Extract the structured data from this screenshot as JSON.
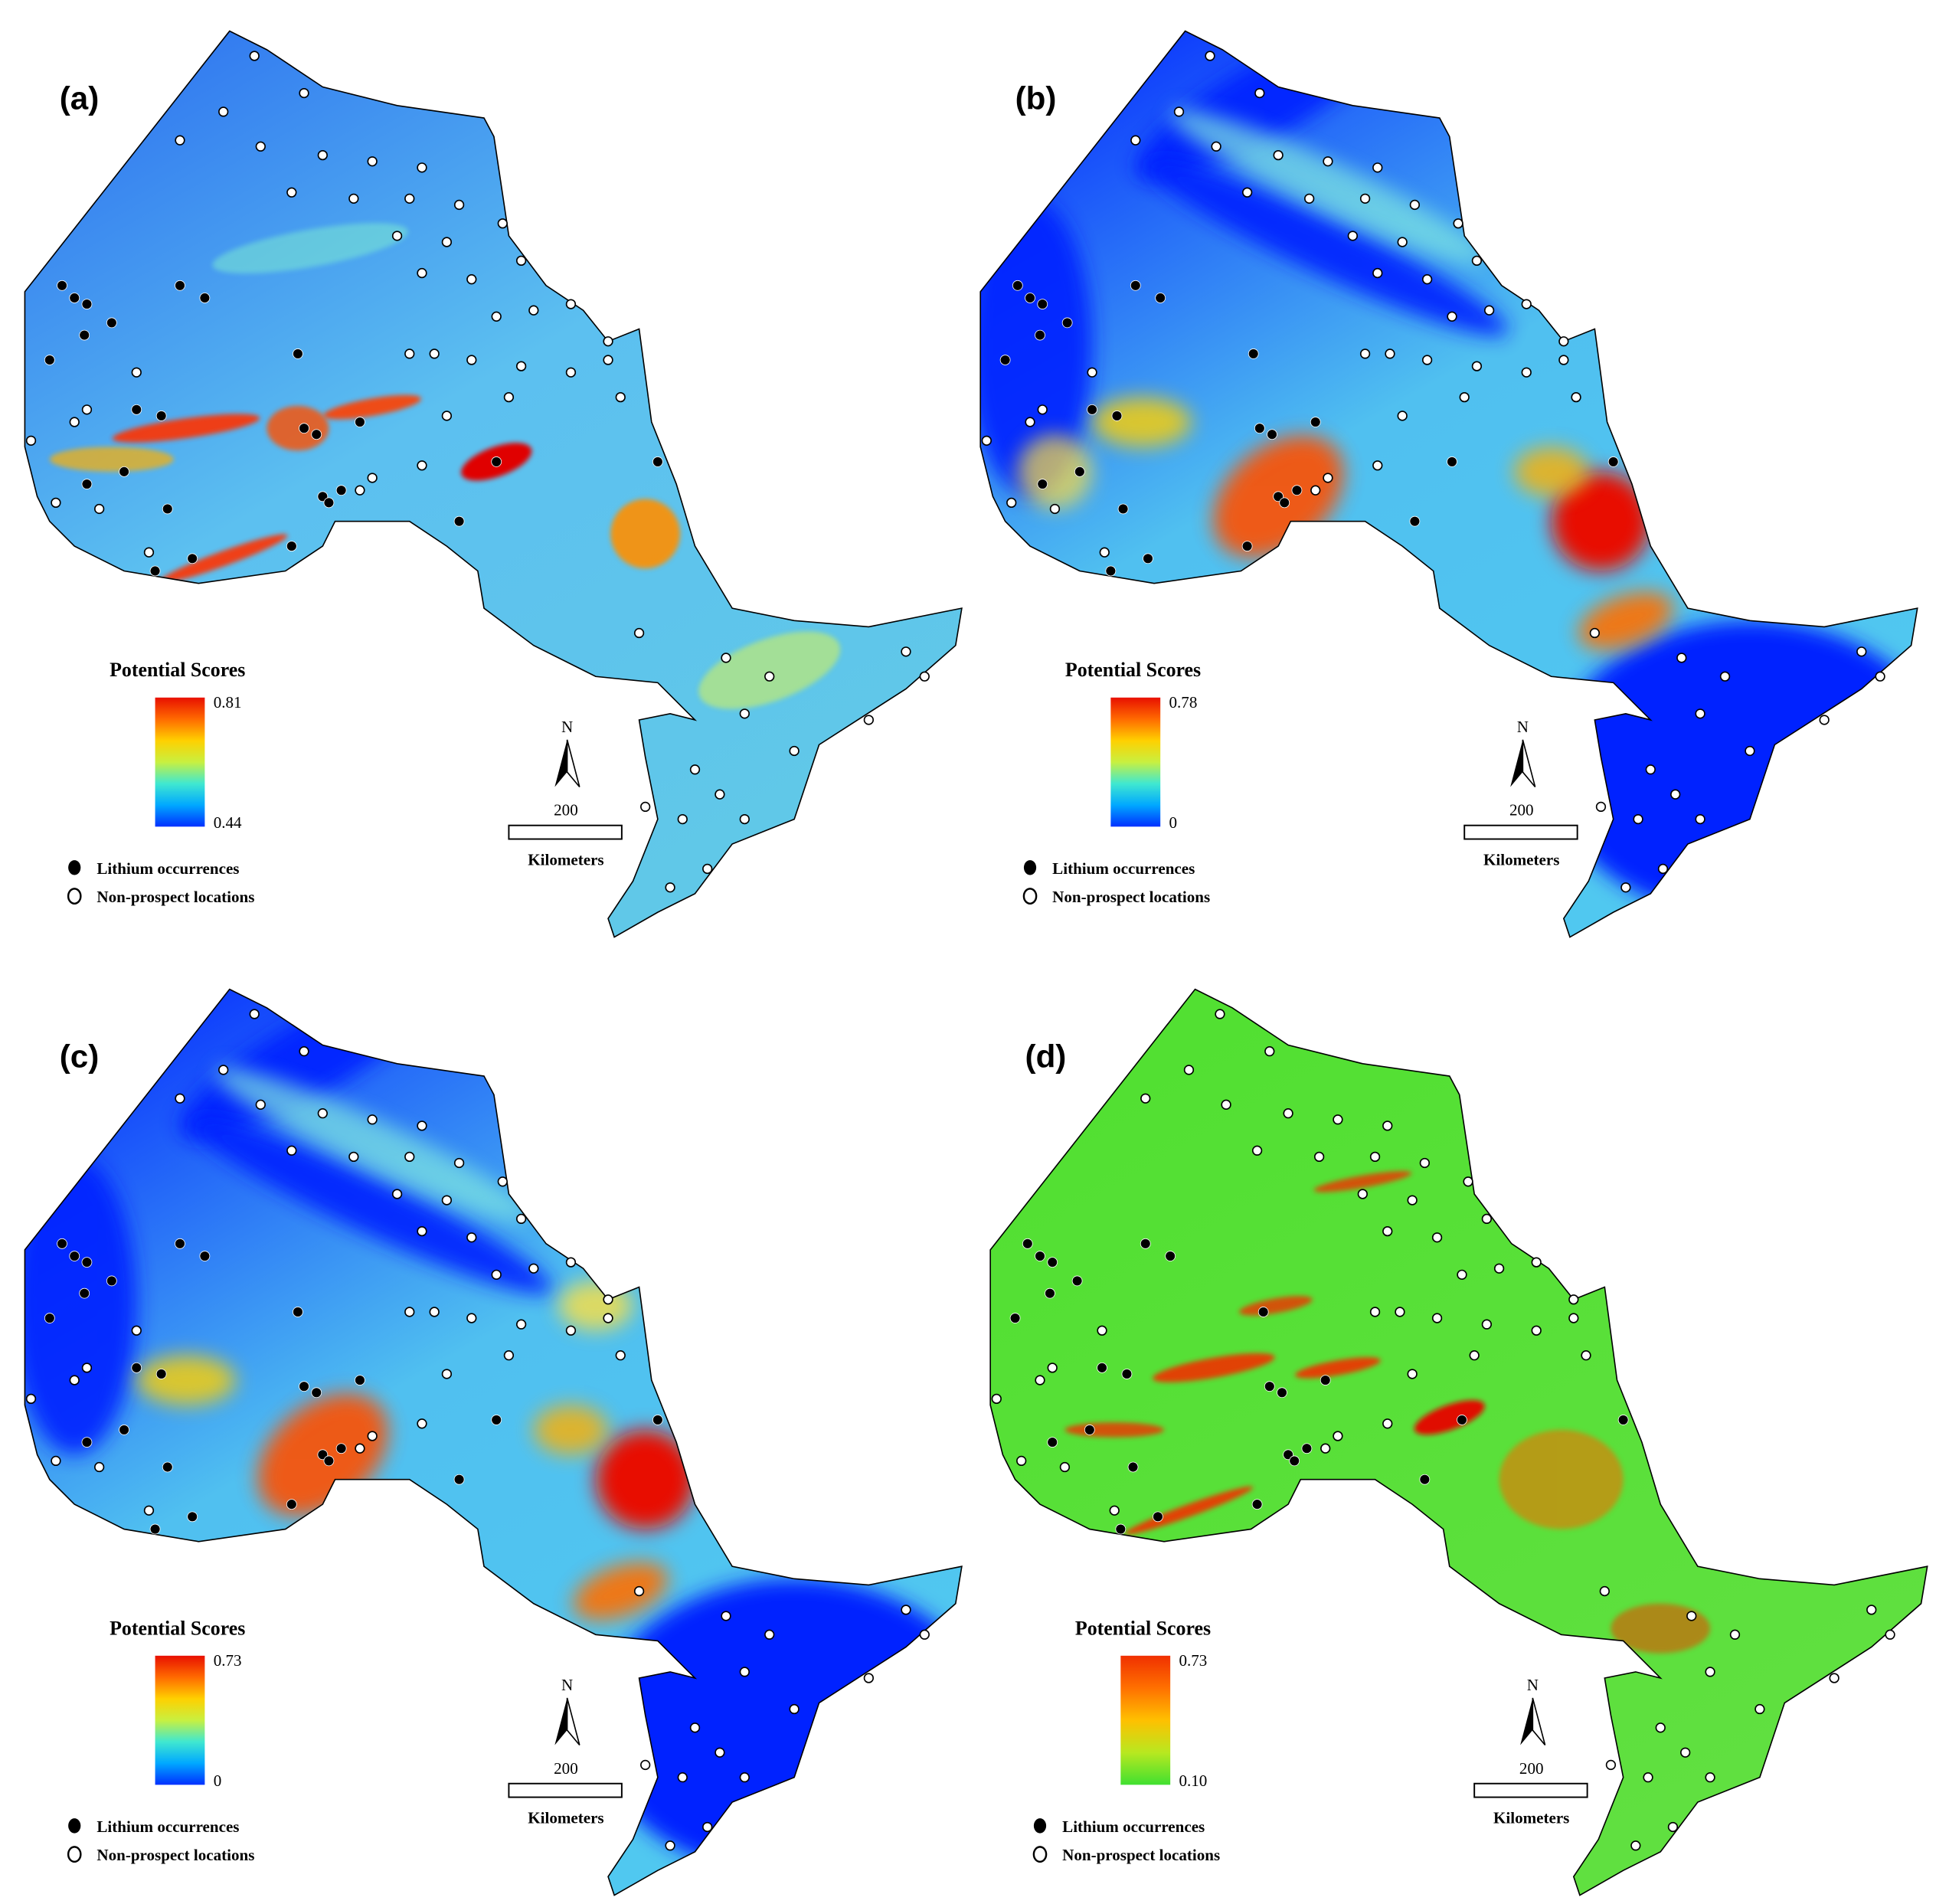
{
  "panels": [
    {
      "label": "(a)",
      "legend": {
        "title": "Potential Scores",
        "max": "0.81",
        "min": "0.44",
        "colors": [
          "#0030ff",
          "#00a8ff",
          "#40e8d0",
          "#c8f040",
          "#ffd000",
          "#ff6a00",
          "#e81000"
        ]
      }
    },
    {
      "label": "(b)",
      "legend": {
        "title": "Potential Scores",
        "max": "0.78",
        "min": "0",
        "colors": [
          "#0030ff",
          "#00a8ff",
          "#40e8d0",
          "#c8f040",
          "#ffd000",
          "#ff6a00",
          "#e81000"
        ]
      }
    },
    {
      "label": "(c)",
      "legend": {
        "title": "Potential Scores",
        "max": "0.73",
        "min": "0",
        "colors": [
          "#0030ff",
          "#00a8ff",
          "#40e8d0",
          "#c8f040",
          "#ffd000",
          "#ff6a00",
          "#e81000"
        ]
      }
    },
    {
      "label": "(d)",
      "legend": {
        "title": "Potential Scores",
        "max": "0.73",
        "min": "0.10",
        "colors": [
          "#40e030",
          "#b8e820",
          "#ffc000",
          "#ff7000",
          "#f03000"
        ]
      }
    }
  ],
  "legend_items": {
    "lithium": "Lithium occurrences",
    "non_prospect": "Non-prospect locations"
  },
  "north": "N",
  "scale_bar": {
    "distance": "200",
    "unit": "Kilometers"
  }
}
